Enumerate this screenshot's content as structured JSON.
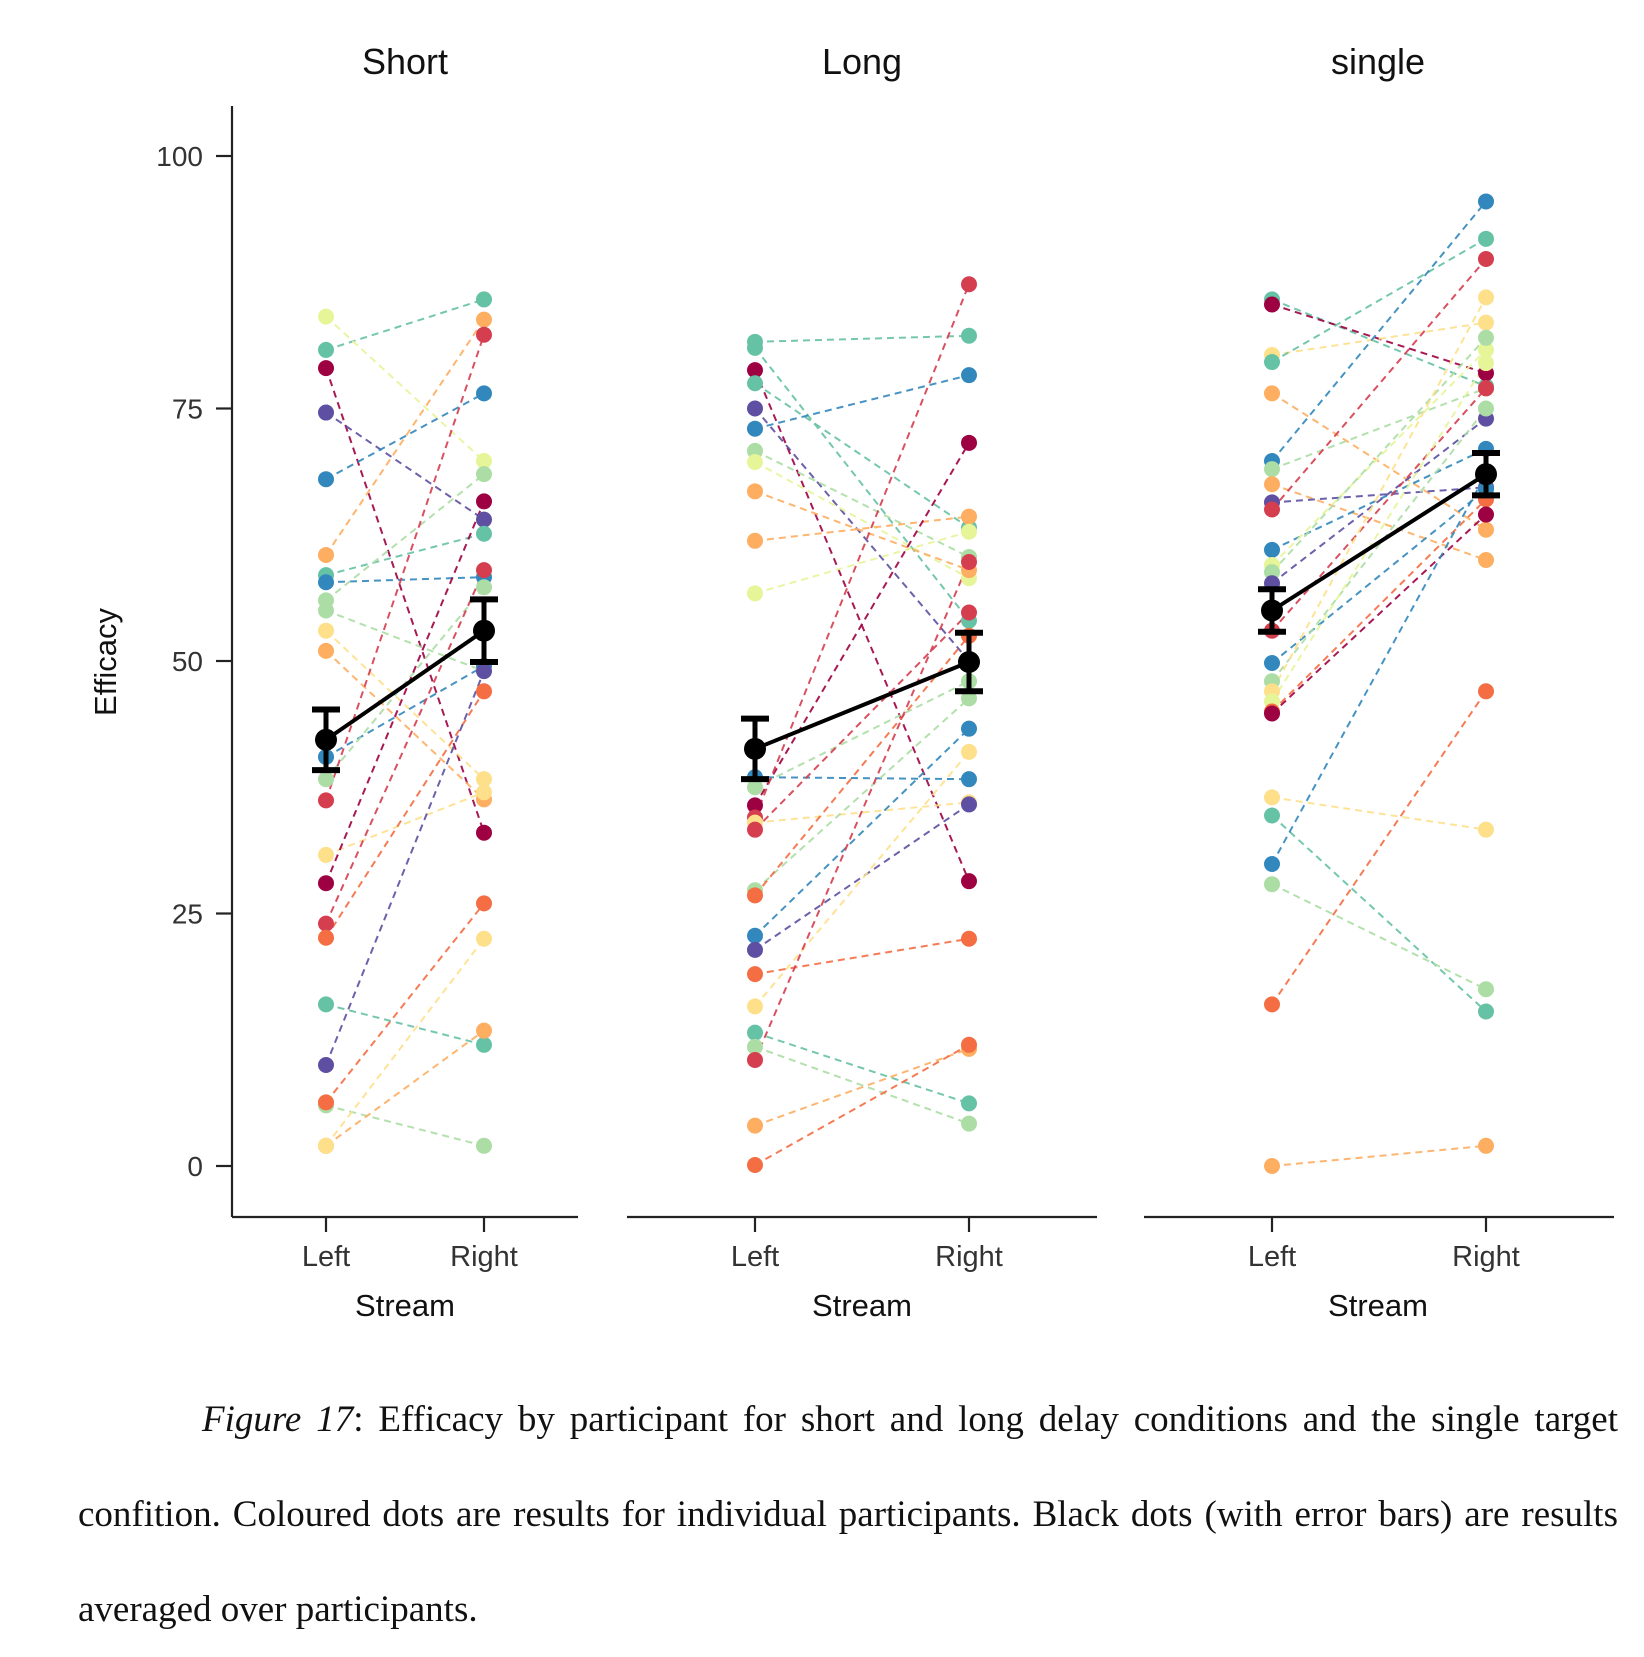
{
  "caption": {
    "label": "Figure 17",
    "separator": ":  ",
    "text": "Efficacy by participant for short and long delay conditions and the single target confition.  Coloured dots are results for individual participants.  Black dots (with error bars) are results averaged over participants."
  },
  "chart_data": {
    "type": "scatter",
    "ylabel": "Efficacy",
    "ylim": [
      -5,
      105
    ],
    "yticks": [
      0,
      25,
      50,
      75,
      100
    ],
    "grid": false,
    "palette": [
      "#5e4fa2",
      "#3288bd",
      "#66c2a5",
      "#abdda4",
      "#e6f598",
      "#fee08b",
      "#fdae61",
      "#f46d43",
      "#d53e4f",
      "#9e0142"
    ],
    "panels": [
      {
        "title": "Short",
        "xlabel": "Stream",
        "categories": [
          "Left",
          "Right"
        ],
        "mean": {
          "Left": 42.2,
          "Right": 53.0
        },
        "error": {
          "Left": 3.0,
          "Right": 3.1
        },
        "participants": [
          {
            "color": "#66c2a5",
            "Left": 80.8,
            "Right": 85.8
          },
          {
            "color": "#e6f598",
            "Left": 84.1,
            "Right": 69.8
          },
          {
            "color": "#9e0142",
            "Left": 79.0,
            "Right": 33.0
          },
          {
            "color": "#5e4fa2",
            "Left": 74.6,
            "Right": 64.0
          },
          {
            "color": "#3288bd",
            "Left": 68.0,
            "Right": 76.5
          },
          {
            "color": "#fdae61",
            "Left": 60.5,
            "Right": 83.8
          },
          {
            "color": "#66c2a5",
            "Left": 58.5,
            "Right": 62.6
          },
          {
            "color": "#3288bd",
            "Left": 57.8,
            "Right": 58.3
          },
          {
            "color": "#abdda4",
            "Left": 56.0,
            "Right": 68.5
          },
          {
            "color": "#abdda4",
            "Left": 55.0,
            "Right": 49.0
          },
          {
            "color": "#fee08b",
            "Left": 53.0,
            "Right": 38.3
          },
          {
            "color": "#fdae61",
            "Left": 51.0,
            "Right": 36.3
          },
          {
            "color": "#3288bd",
            "Left": 40.5,
            "Right": 49.5
          },
          {
            "color": "#abdda4",
            "Left": 38.3,
            "Right": 57.3
          },
          {
            "color": "#d53e4f",
            "Left": 36.2,
            "Right": 82.3
          },
          {
            "color": "#fee08b",
            "Left": 30.8,
            "Right": 37.0
          },
          {
            "color": "#9e0142",
            "Left": 28.0,
            "Right": 65.8
          },
          {
            "color": "#d53e4f",
            "Left": 24.0,
            "Right": 59.0
          },
          {
            "color": "#f46d43",
            "Left": 22.6,
            "Right": 47.0
          },
          {
            "color": "#66c2a5",
            "Left": 16.0,
            "Right": 12.0
          },
          {
            "color": "#5e4fa2",
            "Left": 10.0,
            "Right": 49.0
          },
          {
            "color": "#abdda4",
            "Left": 6.0,
            "Right": 2.0
          },
          {
            "color": "#f46d43",
            "Left": 6.3,
            "Right": 26.0
          },
          {
            "color": "#fdae61",
            "Left": 2.0,
            "Right": 13.4
          },
          {
            "color": "#fee08b",
            "Left": 2.0,
            "Right": 22.5
          }
        ]
      },
      {
        "title": "Long",
        "xlabel": "Stream",
        "categories": [
          "Left",
          "Right"
        ],
        "mean": {
          "Left": 41.3,
          "Right": 49.9
        },
        "error": {
          "Left": 3.0,
          "Right": 2.9
        },
        "participants": [
          {
            "color": "#66c2a5",
            "Left": 81.6,
            "Right": 82.2
          },
          {
            "color": "#66c2a5",
            "Left": 81.0,
            "Right": 54.0
          },
          {
            "color": "#9e0142",
            "Left": 78.8,
            "Right": 28.2
          },
          {
            "color": "#66c2a5",
            "Left": 77.5,
            "Right": 63.2
          },
          {
            "color": "#5e4fa2",
            "Left": 75.0,
            "Right": 50.0
          },
          {
            "color": "#3288bd",
            "Left": 73.0,
            "Right": 78.3
          },
          {
            "color": "#abdda4",
            "Left": 70.8,
            "Right": 60.3
          },
          {
            "color": "#e6f598",
            "Left": 69.7,
            "Right": 58.2
          },
          {
            "color": "#fdae61",
            "Left": 66.8,
            "Right": 59.0
          },
          {
            "color": "#fdae61",
            "Left": 61.9,
            "Right": 64.3
          },
          {
            "color": "#e6f598",
            "Left": 56.7,
            "Right": 62.8
          },
          {
            "color": "#3288bd",
            "Left": 38.5,
            "Right": 38.3
          },
          {
            "color": "#abdda4",
            "Left": 37.5,
            "Right": 48.0
          },
          {
            "color": "#9e0142",
            "Left": 35.7,
            "Right": 71.6
          },
          {
            "color": "#d53e4f",
            "Left": 34.5,
            "Right": 87.3
          },
          {
            "color": "#fee08b",
            "Left": 34.0,
            "Right": 36.0
          },
          {
            "color": "#d53e4f",
            "Left": 33.3,
            "Right": 54.8
          },
          {
            "color": "#abdda4",
            "Left": 27.3,
            "Right": 46.3
          },
          {
            "color": "#f46d43",
            "Left": 26.8,
            "Right": 52.5
          },
          {
            "color": "#3288bd",
            "Left": 22.8,
            "Right": 43.3
          },
          {
            "color": "#5e4fa2",
            "Left": 21.4,
            "Right": 35.8
          },
          {
            "color": "#f46d43",
            "Left": 19.0,
            "Right": 22.5
          },
          {
            "color": "#fee08b",
            "Left": 15.8,
            "Right": 41.0
          },
          {
            "color": "#66c2a5",
            "Left": 13.2,
            "Right": 6.2
          },
          {
            "color": "#abdda4",
            "Left": 11.8,
            "Right": 4.2
          },
          {
            "color": "#d53e4f",
            "Left": 10.5,
            "Right": 59.8
          },
          {
            "color": "#fdae61",
            "Left": 4.0,
            "Right": 11.6
          },
          {
            "color": "#f46d43",
            "Left": 0.1,
            "Right": 12.0
          }
        ]
      },
      {
        "title": "single",
        "xlabel": "Stream",
        "categories": [
          "Left",
          "Right"
        ],
        "mean": {
          "Left": 55.0,
          "Right": 68.5
        },
        "error": {
          "Left": 2.1,
          "Right": 2.1
        },
        "participants": [
          {
            "color": "#66c2a5",
            "Left": 85.8,
            "Right": 77.2
          },
          {
            "color": "#9e0142",
            "Left": 85.3,
            "Right": 78.5
          },
          {
            "color": "#fee08b",
            "Left": 80.3,
            "Right": 83.5
          },
          {
            "color": "#66c2a5",
            "Left": 79.6,
            "Right": 91.8
          },
          {
            "color": "#fdae61",
            "Left": 76.5,
            "Right": 63.0
          },
          {
            "color": "#3288bd",
            "Left": 69.8,
            "Right": 95.5
          },
          {
            "color": "#abdda4",
            "Left": 69.0,
            "Right": 77.0
          },
          {
            "color": "#fdae61",
            "Left": 67.5,
            "Right": 60.0
          },
          {
            "color": "#5e4fa2",
            "Left": 65.7,
            "Right": 67.2
          },
          {
            "color": "#d53e4f",
            "Left": 65.0,
            "Right": 89.8
          },
          {
            "color": "#3288bd",
            "Left": 61.0,
            "Right": 71.0
          },
          {
            "color": "#e6f598",
            "Left": 59.5,
            "Right": 80.8
          },
          {
            "color": "#abdda4",
            "Left": 58.8,
            "Right": 82.0
          },
          {
            "color": "#5e4fa2",
            "Left": 57.7,
            "Right": 74.0
          },
          {
            "color": "#d53e4f",
            "Left": 53.0,
            "Right": 77.0
          },
          {
            "color": "#3288bd",
            "Left": 49.8,
            "Right": 67.0
          },
          {
            "color": "#abdda4",
            "Left": 48.0,
            "Right": 75.0
          },
          {
            "color": "#fee08b",
            "Left": 47.0,
            "Right": 86.0
          },
          {
            "color": "#e6f598",
            "Left": 46.0,
            "Right": 79.5
          },
          {
            "color": "#f46d43",
            "Left": 45.0,
            "Right": 66.0
          },
          {
            "color": "#9e0142",
            "Left": 44.8,
            "Right": 64.5
          },
          {
            "color": "#fee08b",
            "Left": 36.5,
            "Right": 33.3
          },
          {
            "color": "#66c2a5",
            "Left": 34.7,
            "Right": 15.3
          },
          {
            "color": "#3288bd",
            "Left": 29.9,
            "Right": 68.5
          },
          {
            "color": "#abdda4",
            "Left": 27.9,
            "Right": 17.5
          },
          {
            "color": "#f46d43",
            "Left": 16.0,
            "Right": 47.0
          },
          {
            "color": "#fdae61",
            "Left": 0.0,
            "Right": 2.0
          }
        ]
      }
    ]
  }
}
